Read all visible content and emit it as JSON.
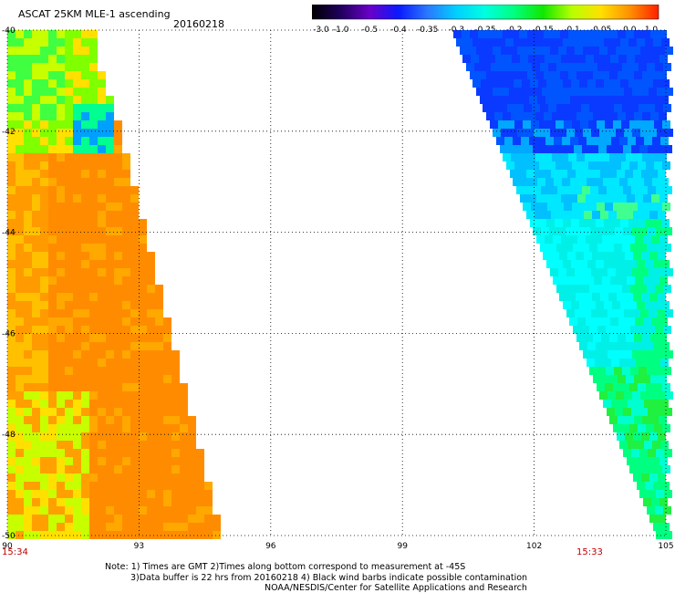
{
  "header": {
    "title": "ASCAT 25KM MLE-1 ascending",
    "date": "20160218"
  },
  "colorbar": {
    "labels": [
      "-3.0",
      "-1.0",
      "-0.5",
      "-0.4",
      "-0.35",
      "-0.3",
      "-0.25",
      "-0.2",
      "-0.15",
      "-0.1",
      "-0.05",
      "0.0",
      "1.0"
    ],
    "colors": [
      "#000000",
      "#1f005e",
      "#6a00c8",
      "#0a1aff",
      "#2a78ff",
      "#00d0ff",
      "#00ffe0",
      "#00ff80",
      "#10e800",
      "#b8ff00",
      "#ffe000",
      "#ff9000",
      "#ff2000"
    ]
  },
  "axes": {
    "lat_labels": [
      "-40",
      "-42",
      "-44",
      "-46",
      "-48",
      "-50"
    ],
    "lon_labels": [
      "90",
      "93",
      "96",
      "99",
      "102",
      "105"
    ]
  },
  "times": {
    "left": "15:34",
    "right": "15:33"
  },
  "notes": [
    "Note: 1) Times are GMT 2)Times along bottom correspond to measurement at -45S",
    "3)Data buffer is 22 hrs from 20160218 4) Black wind barbs indicate possible contamination",
    "NOAA/NESDIS/Center for Satellite Applications and Research"
  ],
  "swaths": {
    "left": {
      "palette": "orange-yellow",
      "dominant_color": "#ff8c00"
    },
    "right": {
      "palette": "blue-cyan-green",
      "dominant_color": "#00ffff"
    }
  }
}
